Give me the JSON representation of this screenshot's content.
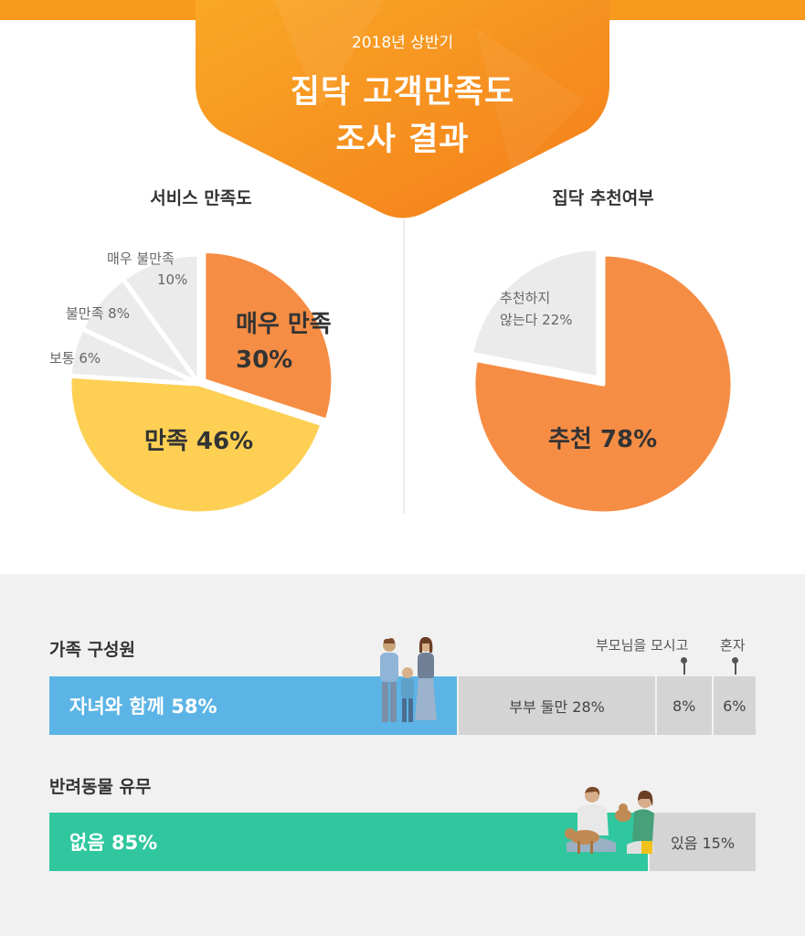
{
  "header": {
    "subtitle": "2018년 상반기",
    "title_line1": "집닥 고객만족도",
    "title_line2": "조사 결과",
    "color": "#f7931e"
  },
  "service_satisfaction": {
    "title": "서비스 만족도",
    "slices": [
      {
        "label": "매우 만족",
        "pct_text": "30%",
        "value": 30,
        "color": "#f68d44"
      },
      {
        "label": "만족 46%",
        "value": 46,
        "color": "#fdd054"
      },
      {
        "label": "보통 6%",
        "value": 6,
        "color": "#ebebeb"
      },
      {
        "label": "불만족 8%",
        "value": 8,
        "color": "#ebebeb"
      },
      {
        "label": "매우 불만족",
        "pct_text": "10%",
        "value": 10,
        "color": "#ebebeb"
      }
    ]
  },
  "recommendation": {
    "title": "집닥 추천여부",
    "slices": [
      {
        "label": "추천 78%",
        "value": 78,
        "color": "#f68d44"
      },
      {
        "label": "추천하지",
        "label2": "않는다 22%",
        "value": 22,
        "color": "#ebebeb"
      }
    ]
  },
  "family": {
    "title": "가족 구성원",
    "segments": [
      {
        "label": "자녀와 함께 58%",
        "value": 58,
        "color": "#5bb4e5"
      },
      {
        "label": "부부 둘만 28%",
        "value": 28,
        "color": "#d4d4d4"
      },
      {
        "label": "8%",
        "value": 8,
        "color": "#d4d4d4",
        "callout": "부모님을 모시고"
      },
      {
        "label": "6%",
        "value": 6,
        "color": "#d4d4d4",
        "callout": "혼자"
      }
    ]
  },
  "pets": {
    "title": "반려동물 유무",
    "segments": [
      {
        "label": "없음 85%",
        "value": 85,
        "color": "#30c79e"
      },
      {
        "label": "있음 15%",
        "value": 15,
        "color": "#d4d4d4"
      }
    ]
  },
  "icons": [
    "family-illustration",
    "pet-owners-illustration"
  ]
}
